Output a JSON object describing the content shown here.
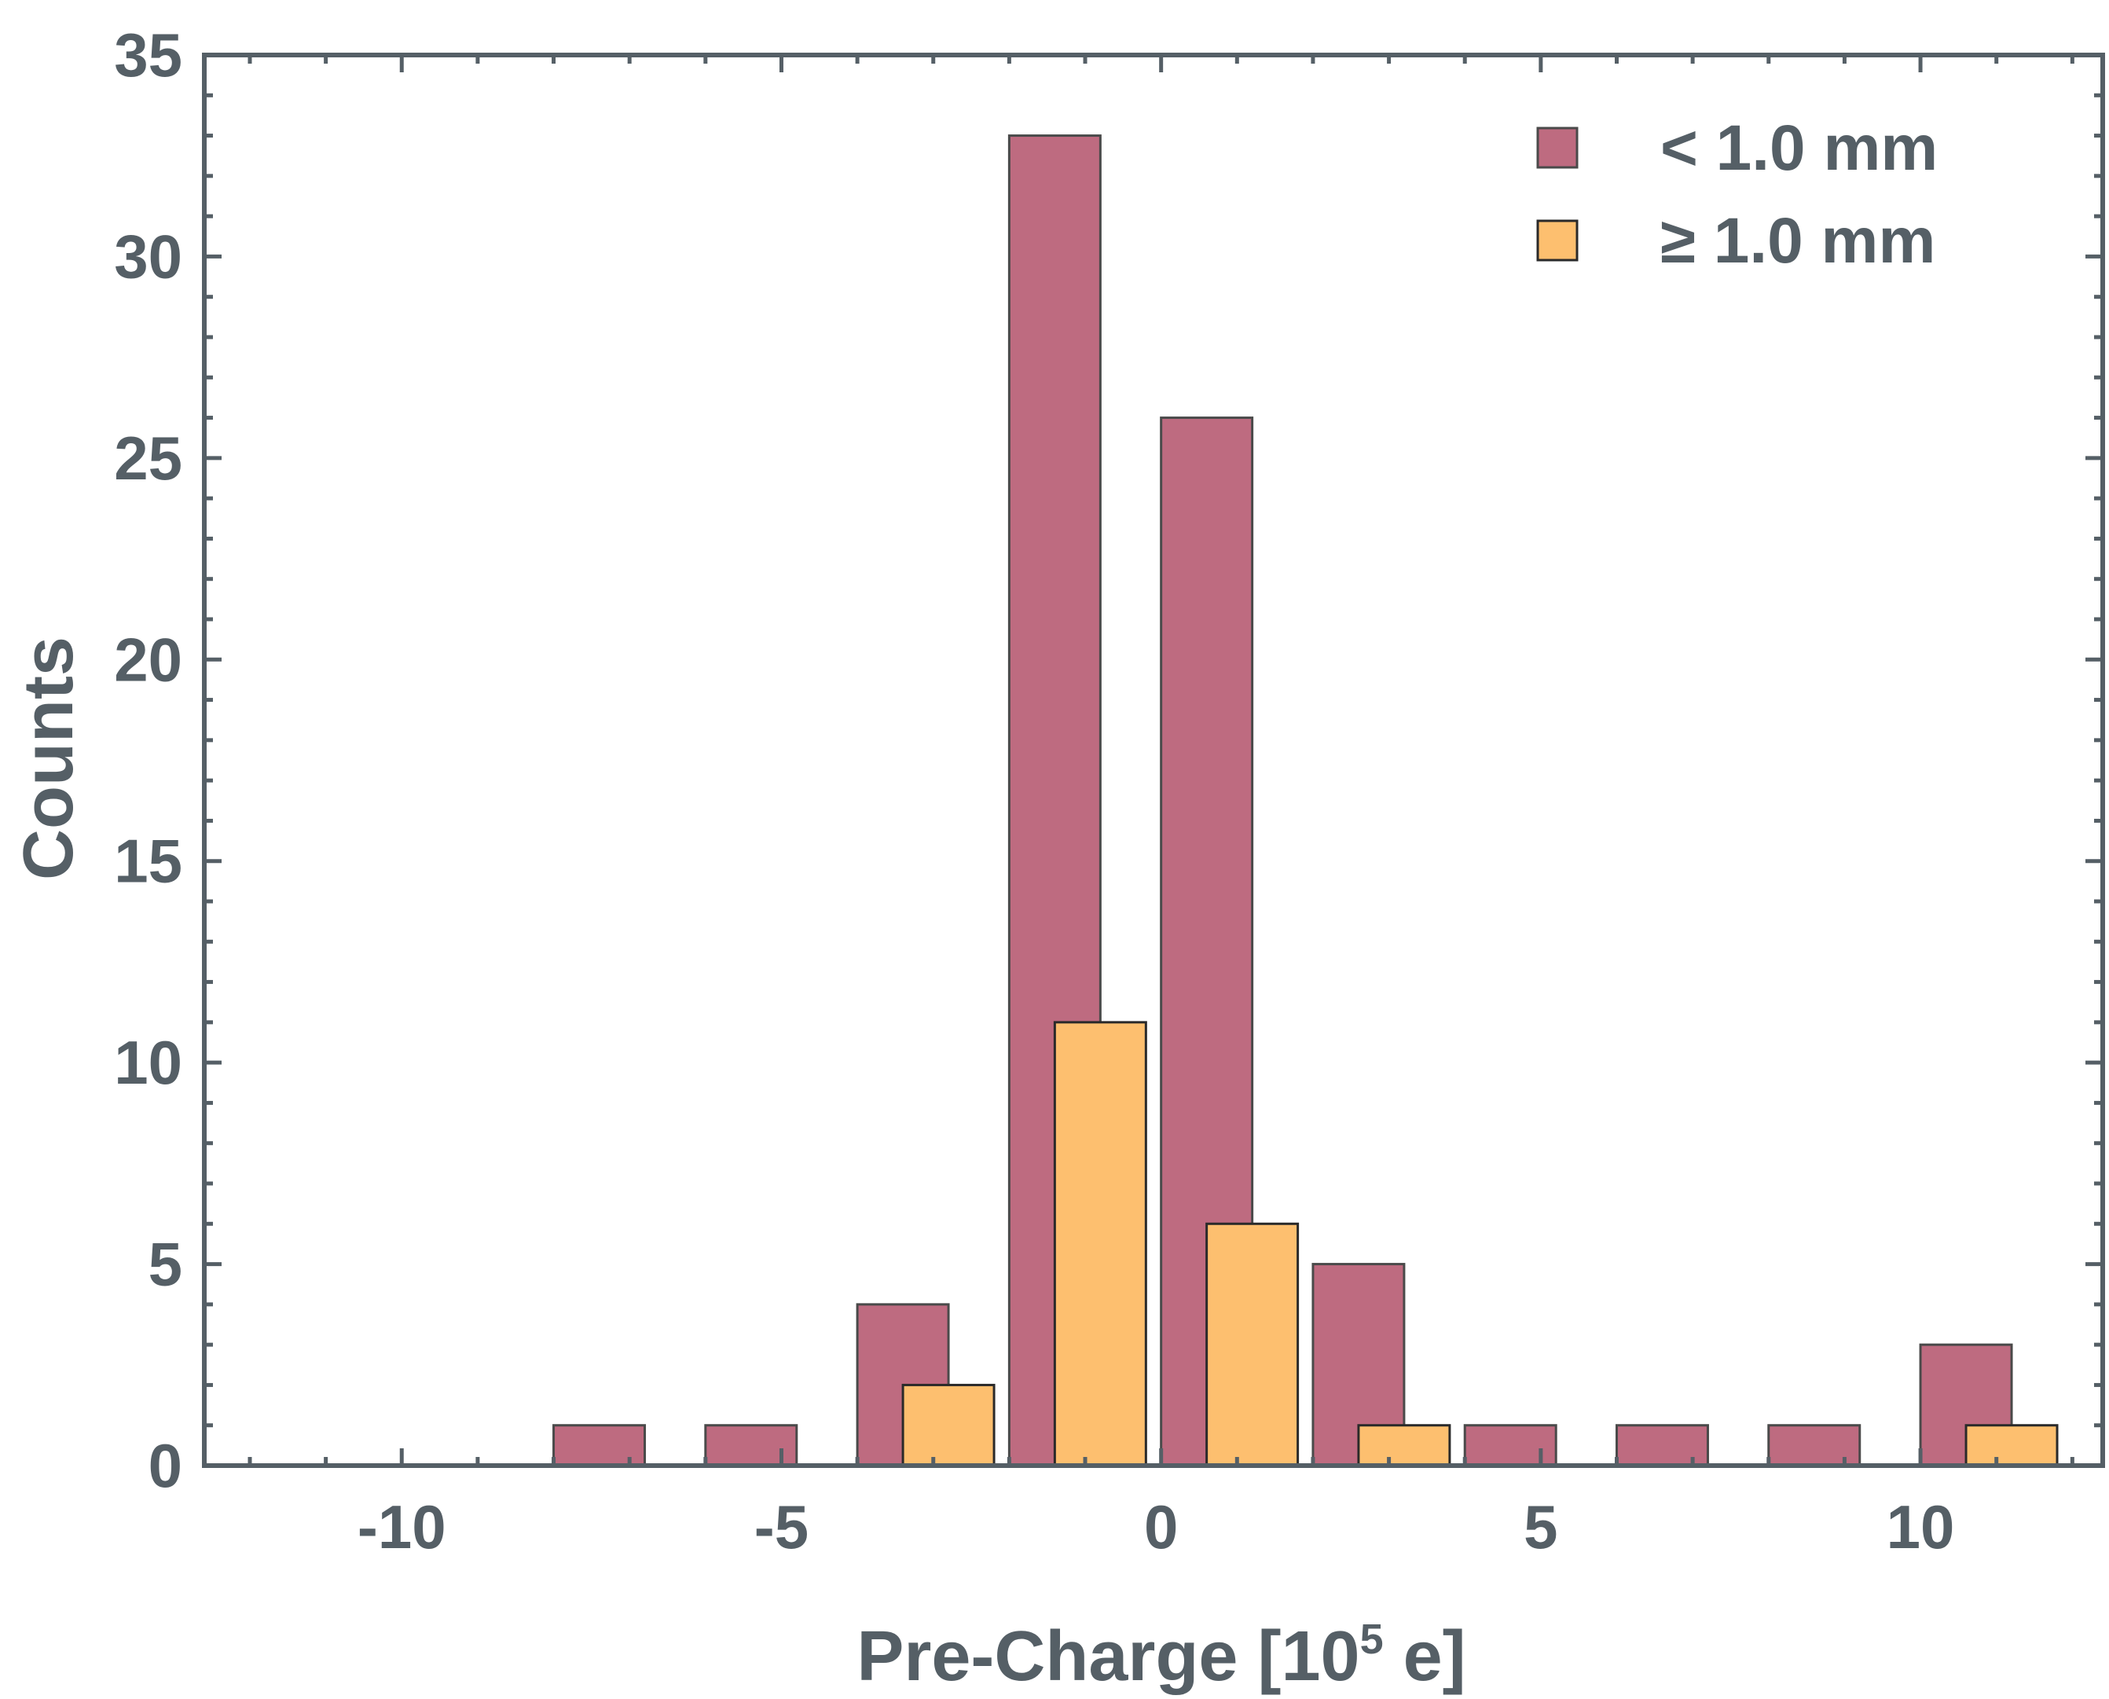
{
  "chart_data": {
    "type": "bar",
    "xlabel_main": "Pre-Charge [10",
    "xlabel_sup": "5",
    "xlabel_tail": " e]",
    "ylabel": "Counts",
    "xlim": [
      -12.6,
      12.4
    ],
    "ylim": [
      0,
      35
    ],
    "x_ticks": [
      -10,
      -5,
      0,
      5,
      10
    ],
    "y_ticks": [
      0,
      5,
      10,
      15,
      20,
      25,
      30,
      35
    ],
    "x_minor_step": 1,
    "y_minor_step": 1,
    "legend_position": "top-right",
    "series": [
      {
        "name": "< 1.0 mm",
        "color": "#be6b80",
        "bars": [
          {
            "x0": -8.0,
            "x1": -6.8,
            "value": 1
          },
          {
            "x0": -6.0,
            "x1": -4.8,
            "value": 1
          },
          {
            "x0": -4.0,
            "x1": -2.8,
            "value": 4
          },
          {
            "x0": -2.0,
            "x1": -0.8,
            "value": 33
          },
          {
            "x0": 0.0,
            "x1": 1.2,
            "value": 26
          },
          {
            "x0": 2.0,
            "x1": 3.2,
            "value": 5
          },
          {
            "x0": 4.0,
            "x1": 5.2,
            "value": 1
          },
          {
            "x0": 6.0,
            "x1": 7.2,
            "value": 1
          },
          {
            "x0": 8.0,
            "x1": 9.2,
            "value": 1
          },
          {
            "x0": 10.0,
            "x1": 11.2,
            "value": 3
          }
        ]
      },
      {
        "name": "≥ 1.0 mm",
        "color": "#fdbf6f",
        "bars": [
          {
            "x0": -3.4,
            "x1": -2.2,
            "value": 2
          },
          {
            "x0": -1.4,
            "x1": -0.2,
            "value": 11
          },
          {
            "x0": 0.6,
            "x1": 1.8,
            "value": 6
          },
          {
            "x0": 2.6,
            "x1": 3.8,
            "value": 1
          },
          {
            "x0": 10.6,
            "x1": 11.8,
            "value": 1
          }
        ]
      }
    ]
  }
}
